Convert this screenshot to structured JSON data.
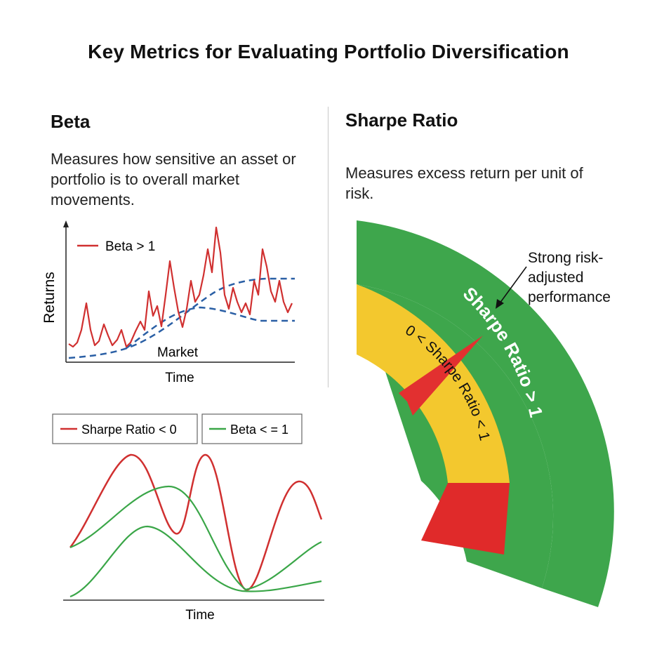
{
  "title": "Key Metrics for Evaluating Portfolio Diversification",
  "beta": {
    "heading": "Beta",
    "description": "Measures how sensitive an asset or portfolio is to overall market movements.",
    "chart": {
      "y_label": "Returns",
      "x_label": "Time",
      "legend_label": "Beta > 1",
      "market_label": "Market"
    }
  },
  "lower_chart": {
    "x_label": "Time",
    "legend": [
      {
        "label": "Sharpe Ratio < 0",
        "color": "#d03030"
      },
      {
        "label": "Beta < = 1",
        "color": "#3aa648"
      }
    ]
  },
  "sharpe": {
    "heading": "Sharpe Ratio",
    "description": "Measures excess return per unit of risk.",
    "gauge": {
      "outer_band_label": "Sharpe Ratio > 1",
      "inner_band_label": "0 < Sharpe Ratio < 1",
      "callout": [
        "Strong risk-",
        "adjusted",
        "performance"
      ],
      "colors": {
        "green": "#3ea64c",
        "yellow": "#f3c82e",
        "red": "#e02a2a"
      }
    }
  }
}
